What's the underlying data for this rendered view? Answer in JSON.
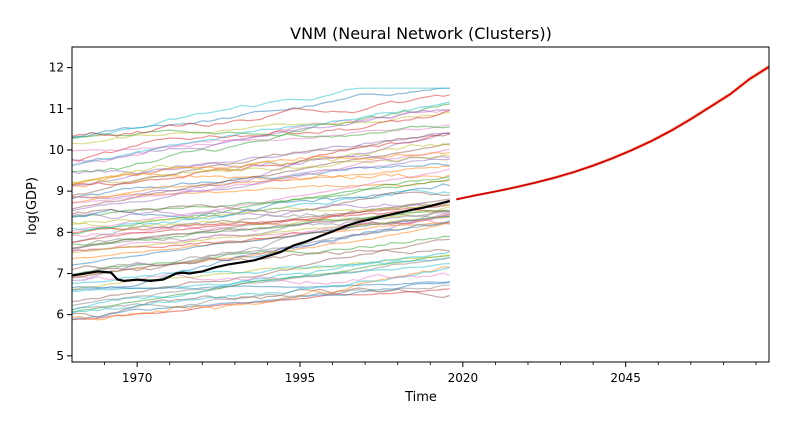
{
  "chart_data": {
    "type": "line",
    "title": "VNM (Neural Network (Clusters))",
    "xlabel": "Time",
    "ylabel": "log(GDP)",
    "xlim": [
      1960,
      2067
    ],
    "ylim": [
      4.85,
      12.5
    ],
    "x_ticks": [
      1970,
      1995,
      2020,
      2045
    ],
    "x_tick_labels": [
      "1970",
      "1995",
      "2020",
      "2045"
    ],
    "y_ticks": [
      5,
      6,
      7,
      8,
      9,
      10,
      11,
      12
    ],
    "y_tick_labels": [
      "5",
      "6",
      "7",
      "8",
      "9",
      "10",
      "11",
      "12"
    ],
    "grid": false,
    "legend": "none",
    "background_series_count": 70,
    "background_x_range": [
      1960,
      2018
    ],
    "background_y_range": [
      5.3,
      11.5
    ],
    "background_opacity": 0.5,
    "colors": {
      "highlight": "#000000",
      "forecast": "#cc0000",
      "forecast_band": "#f4a582",
      "palette": [
        "#1f77b4",
        "#ff7f0e",
        "#2ca02c",
        "#d62728",
        "#9467bd",
        "#8c564b",
        "#e377c2",
        "#7f7f7f",
        "#bcbd22",
        "#17becf"
      ]
    },
    "highlight_series": {
      "x": [
        1960,
        1962,
        1964,
        1966,
        1967,
        1968,
        1970,
        1972,
        1974,
        1976,
        1977,
        1978,
        1980,
        1982,
        1984,
        1986,
        1988,
        1990,
        1992,
        1994,
        1996,
        1998,
        2000,
        2002,
        2004,
        2006,
        2008,
        2010,
        2012,
        2014,
        2016,
        2018
      ],
      "y": [
        6.95,
        7.0,
        7.05,
        7.02,
        6.85,
        6.82,
        6.85,
        6.82,
        6.85,
        7.0,
        7.02,
        7.0,
        7.05,
        7.15,
        7.22,
        7.27,
        7.32,
        7.42,
        7.52,
        7.68,
        7.78,
        7.9,
        8.02,
        8.15,
        8.25,
        8.32,
        8.4,
        8.47,
        8.54,
        8.6,
        8.68,
        8.76
      ]
    },
    "forecast_series": {
      "x": [
        2019,
        2022,
        2025,
        2028,
        2031,
        2034,
        2037,
        2040,
        2043,
        2046,
        2049,
        2052,
        2055,
        2058,
        2061,
        2064,
        2067
      ],
      "y": [
        8.8,
        8.9,
        8.99,
        9.09,
        9.2,
        9.32,
        9.46,
        9.62,
        9.8,
        10.0,
        10.22,
        10.47,
        10.75,
        11.05,
        11.35,
        11.72,
        12.02
      ]
    }
  }
}
